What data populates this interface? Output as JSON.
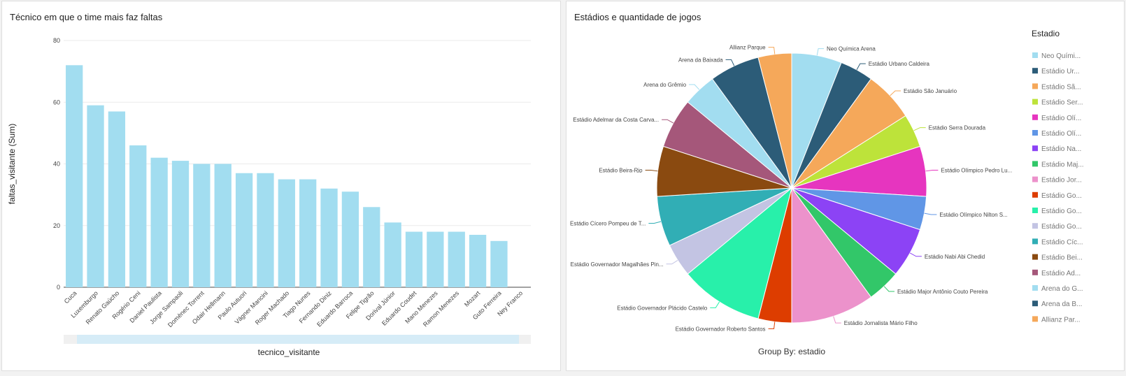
{
  "charts": {
    "bar": {
      "title": "Técnico em que o time mais faz faltas"
    },
    "pie": {
      "title": "Estádios e quantidade de jogos"
    }
  },
  "chart_data": [
    {
      "type": "bar",
      "title": "Técnico em que o time mais faz faltas",
      "xlabel": "tecnico_visitante",
      "ylabel": "faltas_visitante (Sum)",
      "ylim": [
        0,
        80
      ],
      "yticks": [
        0,
        20,
        40,
        60,
        80
      ],
      "grid": true,
      "color": "#a2ddf0",
      "categories": [
        "Cuca",
        "Luxemburgo",
        "Renato Gaúcho",
        "Rogério Ceni",
        "Daniel Paulista",
        "Jorge Sampaoli",
        "Domènec Torrent",
        "Odair Hellmann",
        "Paulo Autuori",
        "Vágner Mancini",
        "Roger Machado",
        "Tiago Nunes",
        "Fernando Diniz",
        "Eduardo Barroca",
        "Felipe Tigrão",
        "Dorival Júnior",
        "Eduardo Coudet",
        "Mano Menezes",
        "Ramon Menezes",
        "Mozart",
        "Guto Ferreira",
        "Ney Franco"
      ],
      "values": [
        72,
        59,
        57,
        46,
        42,
        41,
        40,
        40,
        37,
        37,
        35,
        35,
        32,
        31,
        26,
        21,
        18,
        18,
        18,
        17,
        15,
        0
      ]
    },
    {
      "type": "pie",
      "title": "Estádios e quantidade de jogos",
      "group_by_label": "Group By: estadio",
      "legend_title": "Estadio",
      "legend_position": "right",
      "slices": [
        {
          "label": "Neo Química Arena",
          "legend": "Neo Quími...",
          "value": 6,
          "color": "#a2ddf0"
        },
        {
          "label": "Estádio Urbano Caldeira",
          "legend": "Estádio Ur...",
          "value": 4,
          "color": "#2c5c78"
        },
        {
          "label": "Estádio São Januário",
          "legend": "Estádio Sã...",
          "value": 6,
          "color": "#f5a85a"
        },
        {
          "label": "Estádio Serra Dourada",
          "legend": "Estádio Ser...",
          "value": 4,
          "color": "#bde33a"
        },
        {
          "label": "Estádio Olímpico Pedro Lu...",
          "legend": "Estádio Olí...",
          "value": 6,
          "color": "#e635bf"
        },
        {
          "label": "Estádio Olímpico Nilton S...",
          "legend": "Estádio Olí...",
          "value": 4,
          "color": "#6096e6"
        },
        {
          "label": "Estádio Nabi Abi Chedid",
          "legend": "Estádio Na...",
          "value": 6,
          "color": "#8c43f5"
        },
        {
          "label": "Estádio Major Antônio Couto Pereira",
          "legend": "Estádio Maj...",
          "value": 4,
          "color": "#32c769"
        },
        {
          "label": "Estádio Jornalista Mário Filho",
          "legend": "Estádio Jor...",
          "value": 10,
          "color": "#ec92cb"
        },
        {
          "label": "Estádio Governador Roberto Santos",
          "legend": "Estádio Go...",
          "value": 4,
          "color": "#dd3d00"
        },
        {
          "label": "Estádio Governador Plácido Castelo",
          "legend": "Estádio Go...",
          "value": 10,
          "color": "#28f0aa"
        },
        {
          "label": "Estádio Governador Magalhães Pin...",
          "legend": "Estádio Go...",
          "value": 4,
          "color": "#c3c4e3"
        },
        {
          "label": "Estádio Cícero Pompeu de T...",
          "legend": "Estádio Cíc...",
          "value": 6,
          "color": "#31aeb5"
        },
        {
          "label": "Estádio Beira-Rio",
          "legend": "Estádio Bei...",
          "value": 6,
          "color": "#8a4a10"
        },
        {
          "label": "Estádio Adelmar da Costa Carva...",
          "legend": "Estádio Ad...",
          "value": 6,
          "color": "#a5577a"
        },
        {
          "label": "Arena do Grêmio",
          "legend": "Arena do G...",
          "value": 4,
          "color": "#a2ddf0"
        },
        {
          "label": "Arena da Baixada",
          "legend": "Arena da B...",
          "value": 6,
          "color": "#2c5c78"
        },
        {
          "label": "Allianz Parque",
          "legend": "Allianz Par...",
          "value": 4,
          "color": "#f5a85a"
        }
      ],
      "extra_marker": "..."
    }
  ]
}
